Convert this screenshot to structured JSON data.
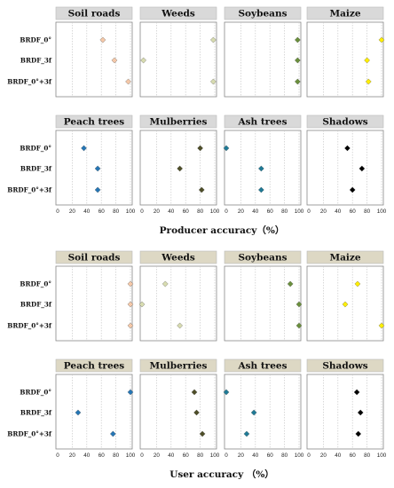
{
  "chart_data": [
    {
      "type": "scatter",
      "xlabel": "Producer accuracy（%）",
      "title_bg": "#d9d9d9",
      "row_labels": [
        "BRDF_0°",
        "BRDF_3f",
        "BRDF_0°+3f"
      ],
      "x_ticks": [
        0,
        20,
        40,
        60,
        80,
        100
      ],
      "xlim": [
        0,
        100
      ],
      "panels": [
        {
          "title": "Soil roads",
          "color": "#f5c8a8",
          "values": [
            62,
            78,
            97
          ]
        },
        {
          "title": "Weeds",
          "color": "#d8dcb0",
          "values": [
            98,
            2,
            98
          ]
        },
        {
          "title": "Soybeans",
          "color": "#6a8f3c",
          "values": [
            98,
            98,
            98
          ]
        },
        {
          "title": "Maize",
          "color": "#ffee00",
          "values": [
            100,
            80,
            82
          ]
        },
        {
          "title": "Peach trees",
          "color": "#2576b5",
          "values": [
            36,
            55,
            55
          ]
        },
        {
          "title": "Mulberries",
          "color": "#4e4e28",
          "values": [
            80,
            52,
            82
          ]
        },
        {
          "title": "Ash trees",
          "color": "#1f7a96",
          "values": [
            0,
            48,
            48
          ]
        },
        {
          "title": "Shadows",
          "color": "#000000",
          "values": [
            53,
            73,
            60
          ]
        }
      ]
    },
    {
      "type": "scatter",
      "xlabel": "User accuracy （%）",
      "title_bg": "#ddd8c4",
      "row_labels": [
        "BRDF_0°",
        "BRDF_3f",
        "BRDF_0°+3f"
      ],
      "x_ticks": [
        0,
        20,
        40,
        60,
        80,
        100
      ],
      "xlim": [
        0,
        100
      ],
      "panels": [
        {
          "title": "Soil roads",
          "color": "#f5c8a8",
          "values": [
            100,
            100,
            100
          ]
        },
        {
          "title": "Weeds",
          "color": "#d8dcb0",
          "values": [
            32,
            0,
            52
          ]
        },
        {
          "title": "Soybeans",
          "color": "#6a8f3c",
          "values": [
            88,
            100,
            100
          ]
        },
        {
          "title": "Maize",
          "color": "#ffee00",
          "values": [
            67,
            50,
            100
          ]
        },
        {
          "title": "Peach trees",
          "color": "#2576b5",
          "values": [
            100,
            28,
            76
          ]
        },
        {
          "title": "Mulberries",
          "color": "#4e4e28",
          "values": [
            72,
            75,
            83
          ]
        },
        {
          "title": "Ash trees",
          "color": "#1f7a96",
          "values": [
            0,
            38,
            28
          ]
        },
        {
          "title": "Shadows",
          "color": "#000000",
          "values": [
            66,
            71,
            68
          ]
        }
      ]
    }
  ]
}
